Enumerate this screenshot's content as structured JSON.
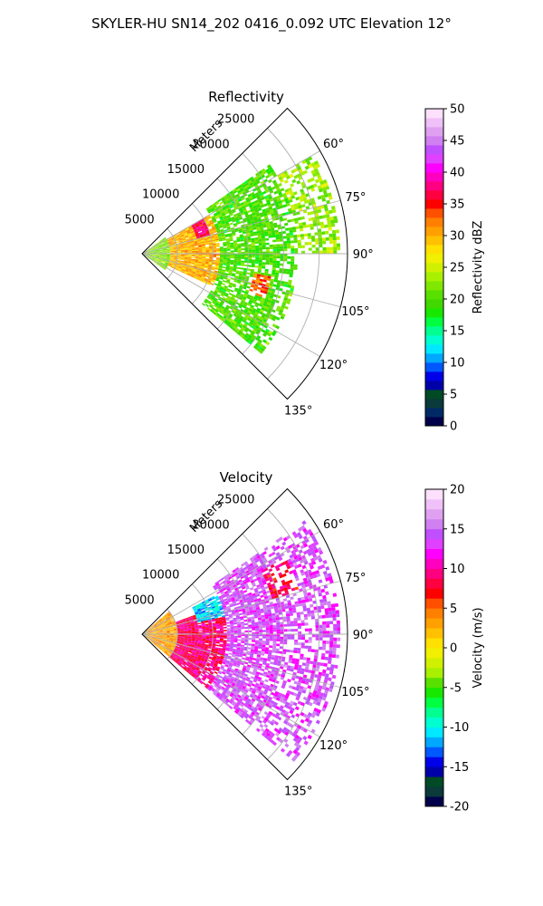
{
  "figure": {
    "suptitle": "SKYLER-HU  SN14_202  0416_0.092 UTC Elevation 12°"
  },
  "chart_data": [
    {
      "type": "heatmap",
      "title": "Reflectivity",
      "projection": "polar-sector",
      "theta_range_deg": [
        45,
        135
      ],
      "r_max_m": 29000,
      "r_axis_label": "Meters",
      "r_ticks": [
        5000,
        10000,
        15000,
        20000,
        25000
      ],
      "theta_ticks": [
        60,
        75,
        90,
        105,
        120,
        135
      ],
      "grid": true,
      "colorbar": {
        "label": "Reflectivity dBZ",
        "range": [
          0,
          50
        ],
        "ticks": [
          0,
          5,
          10,
          15,
          20,
          25,
          30,
          35,
          40,
          45,
          50
        ],
        "colors": [
          "#00004a",
          "#002a66",
          "#0a3a3a",
          "#004a26",
          "#0000a8",
          "#0000e8",
          "#0058ff",
          "#00a8ff",
          "#00e8ff",
          "#00ffd0",
          "#00ff90",
          "#00ff40",
          "#18e800",
          "#40d800",
          "#58e000",
          "#80e800",
          "#a8f000",
          "#d0f000",
          "#f0f000",
          "#ffe000",
          "#ffc000",
          "#ffa000",
          "#ff8000",
          "#ff5000",
          "#ff0000",
          "#ff0040",
          "#ff0080",
          "#ff00c0",
          "#ff00ff",
          "#e040ff",
          "#c050ff",
          "#d080f0",
          "#e0a0f0",
          "#f0c0f8",
          "#fce0fc"
        ]
      },
      "field_summary": [
        {
          "r_m": [
            0,
            4000
          ],
          "theta_deg": [
            55,
            125
          ],
          "value": 22
        },
        {
          "r_m": [
            4000,
            11000
          ],
          "theta_deg": [
            60,
            115
          ],
          "value": 30
        },
        {
          "r_m": [
            8000,
            10000
          ],
          "theta_deg": [
            60,
            75
          ],
          "value": 37
        },
        {
          "r_m": [
            11000,
            22000
          ],
          "theta_deg": [
            55,
            130
          ],
          "value": 20
        },
        {
          "r_m": [
            16000,
            18500
          ],
          "theta_deg": [
            100,
            110
          ],
          "value": 33
        },
        {
          "r_m": [
            22000,
            28000
          ],
          "theta_deg": [
            60,
            90
          ],
          "value": 23
        }
      ]
    },
    {
      "type": "heatmap",
      "title": "Velocity",
      "projection": "polar-sector",
      "theta_range_deg": [
        45,
        135
      ],
      "r_max_m": 29000,
      "r_axis_label": "Meters",
      "r_ticks": [
        5000,
        10000,
        15000,
        20000,
        25000
      ],
      "theta_ticks": [
        60,
        75,
        90,
        105,
        120,
        135
      ],
      "grid": true,
      "colorbar": {
        "label": "Velocity (m/s)",
        "range": [
          -20,
          20
        ],
        "ticks": [
          -20,
          -15,
          -10,
          -5,
          0,
          5,
          10,
          15,
          20
        ],
        "colors": [
          "#00004a",
          "#0a3a3a",
          "#004a26",
          "#0000a8",
          "#0000e8",
          "#0058ff",
          "#00a8ff",
          "#00e8ff",
          "#00ffd0",
          "#00ff90",
          "#00ff40",
          "#18e800",
          "#58e000",
          "#a8f000",
          "#d0f000",
          "#f0f000",
          "#ffe000",
          "#ffc000",
          "#ffa000",
          "#ff8000",
          "#ff5000",
          "#ff0000",
          "#ff0040",
          "#ff0080",
          "#ff00c0",
          "#ff00ff",
          "#e040ff",
          "#c050ff",
          "#d080f0",
          "#e0a0f0",
          "#f0c0f8",
          "#fce0fc"
        ]
      },
      "field_summary": [
        {
          "r_m": [
            0,
            5000
          ],
          "theta_deg": [
            50,
            130
          ],
          "value": 3
        },
        {
          "r_m": [
            5000,
            12000
          ],
          "theta_deg": [
            70,
            130
          ],
          "value": 9
        },
        {
          "r_m": [
            8000,
            14000
          ],
          "theta_deg": [
            62,
            78
          ],
          "value": -11
        },
        {
          "r_m": [
            14000,
            18000
          ],
          "theta_deg": [
            85,
            97
          ],
          "value": -12
        },
        {
          "r_m": [
            12000,
            28000
          ],
          "theta_deg": [
            55,
            130
          ],
          "value": 14
        },
        {
          "r_m": [
            19000,
            23000
          ],
          "theta_deg": [
            62,
            75
          ],
          "value": 8
        }
      ]
    }
  ]
}
